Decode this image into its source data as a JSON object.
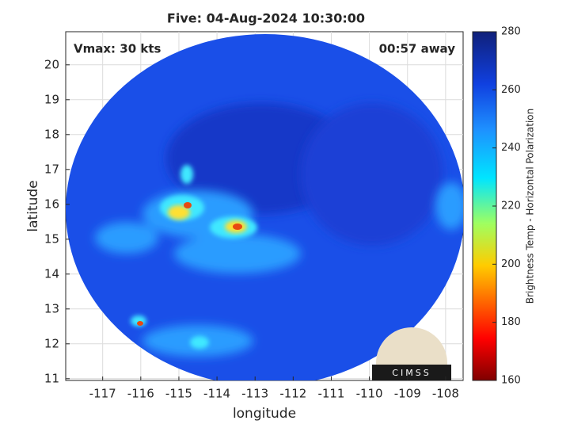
{
  "chart_data": {
    "type": "image",
    "title": "Five: 04-Aug-2024 10:30:00",
    "x_label": "longitude",
    "y_label": "latitude",
    "xlim": [
      -117.97,
      -107.54
    ],
    "ylim": [
      10.95,
      20.95
    ],
    "xticks": [
      -117,
      -116,
      -115,
      -114,
      -113,
      -112,
      -111,
      -110,
      -109,
      -108
    ],
    "yticks": [
      11,
      12,
      13,
      14,
      15,
      16,
      17,
      18,
      19,
      20
    ],
    "grid": true,
    "annotations": [
      "Vmax: 30 kts",
      "00:57 away"
    ],
    "colorbar": {
      "label": "Brightness Temp - Horizontal Polarization",
      "lim": [
        160,
        280
      ],
      "ticks": [
        160,
        180,
        200,
        220,
        240,
        260,
        280
      ]
    },
    "logo": "CIMSS"
  }
}
